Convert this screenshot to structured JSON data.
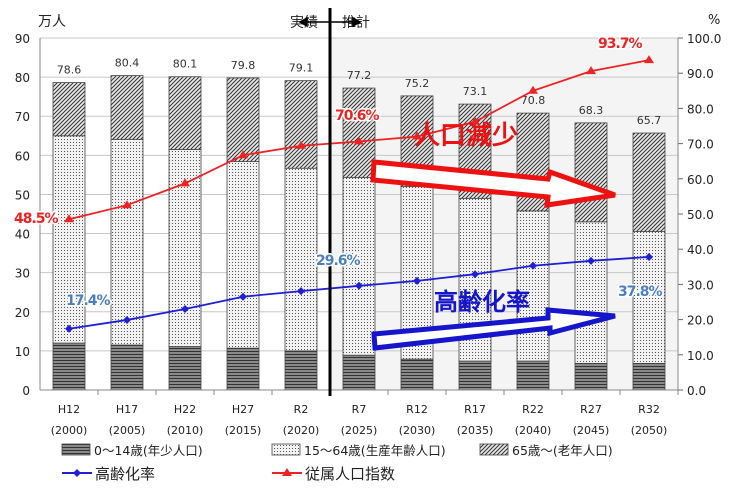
{
  "chart_data": {
    "type": "bar",
    "stacked": true,
    "left_unit": "万人",
    "right_unit": "%",
    "ylim": [
      0,
      90
    ],
    "y2lim": [
      0,
      100
    ],
    "yticks": [
      "0",
      "10",
      "20",
      "30",
      "40",
      "50",
      "60",
      "70",
      "80",
      "90"
    ],
    "y2ticks": [
      "0.0",
      "10.0",
      "20.0",
      "30.0",
      "40.0",
      "50.0",
      "60.0",
      "70.0",
      "80.0",
      "90.0",
      "100.0"
    ],
    "grid": true,
    "categories": [
      {
        "era": "H12",
        "year": "(2000)"
      },
      {
        "era": "H17",
        "year": "(2005)"
      },
      {
        "era": "H22",
        "year": "(2010)"
      },
      {
        "era": "H27",
        "year": "(2015)"
      },
      {
        "era": "R2",
        "year": "(2020)"
      },
      {
        "era": "R7",
        "year": "(2025)"
      },
      {
        "era": "R12",
        "year": "(2030)"
      },
      {
        "era": "R17",
        "year": "(2035)"
      },
      {
        "era": "R22",
        "year": "(2040)"
      },
      {
        "era": "R27",
        "year": "(2045)"
      },
      {
        "era": "R32",
        "year": "(2050)"
      }
    ],
    "totals": [
      "78.6",
      "80.4",
      "80.1",
      "79.8",
      "79.1",
      "77.2",
      "75.2",
      "73.1",
      "70.8",
      "68.3",
      "65.7"
    ],
    "series": [
      {
        "name": "0～14歳(年少人口)",
        "pattern": "horizontal-lines",
        "values": [
          12.0,
          11.5,
          11.1,
          10.7,
          10.0,
          8.9,
          7.9,
          7.4,
          7.4,
          6.8,
          6.8
        ]
      },
      {
        "name": "15～64歳(生産年齢人口)",
        "pattern": "dots",
        "values": [
          53.0,
          52.6,
          50.4,
          47.7,
          46.7,
          45.4,
          44.1,
          41.6,
          38.4,
          36.2,
          33.7
        ]
      },
      {
        "name": "65歳～(老年人口)",
        "pattern": "diagonal-lines",
        "values": [
          13.6,
          16.3,
          18.6,
          21.4,
          22.4,
          22.9,
          23.2,
          24.1,
          25.0,
          25.3,
          25.2
        ]
      }
    ],
    "lines": [
      {
        "name": "高齢化率",
        "axis": "right",
        "color": "#1f1fd6",
        "marker": "diamond",
        "values": [
          17.4,
          19.9,
          23.0,
          26.5,
          28.1,
          29.6,
          31.0,
          32.9,
          35.3,
          36.7,
          37.8
        ]
      },
      {
        "name": "従属人口指数",
        "axis": "right",
        "color": "#ee2222",
        "marker": "triangle",
        "values": [
          48.5,
          52.5,
          58.7,
          66.7,
          69.4,
          70.6,
          72.0,
          76.2,
          85.0,
          90.6,
          93.7
        ]
      }
    ],
    "data_labels": [
      {
        "text": "48.5%",
        "color": "#ee2222"
      },
      {
        "text": "70.6%",
        "color": "#ee2222"
      },
      {
        "text": "93.7%",
        "color": "#ee2222"
      },
      {
        "text": "17.4%",
        "color": "#4a7fc0"
      },
      {
        "text": "29.6%",
        "color": "#4a7fc0"
      },
      {
        "text": "37.8%",
        "color": "#4a7fc0"
      }
    ],
    "period_labels": {
      "actual": "実績",
      "forecast": "推計"
    },
    "annotations": [
      {
        "text": "人口減少",
        "color": "#ee1111"
      },
      {
        "text": "高齢化率",
        "color": "#1515cc"
      }
    ],
    "legend_placement": "bottom"
  }
}
